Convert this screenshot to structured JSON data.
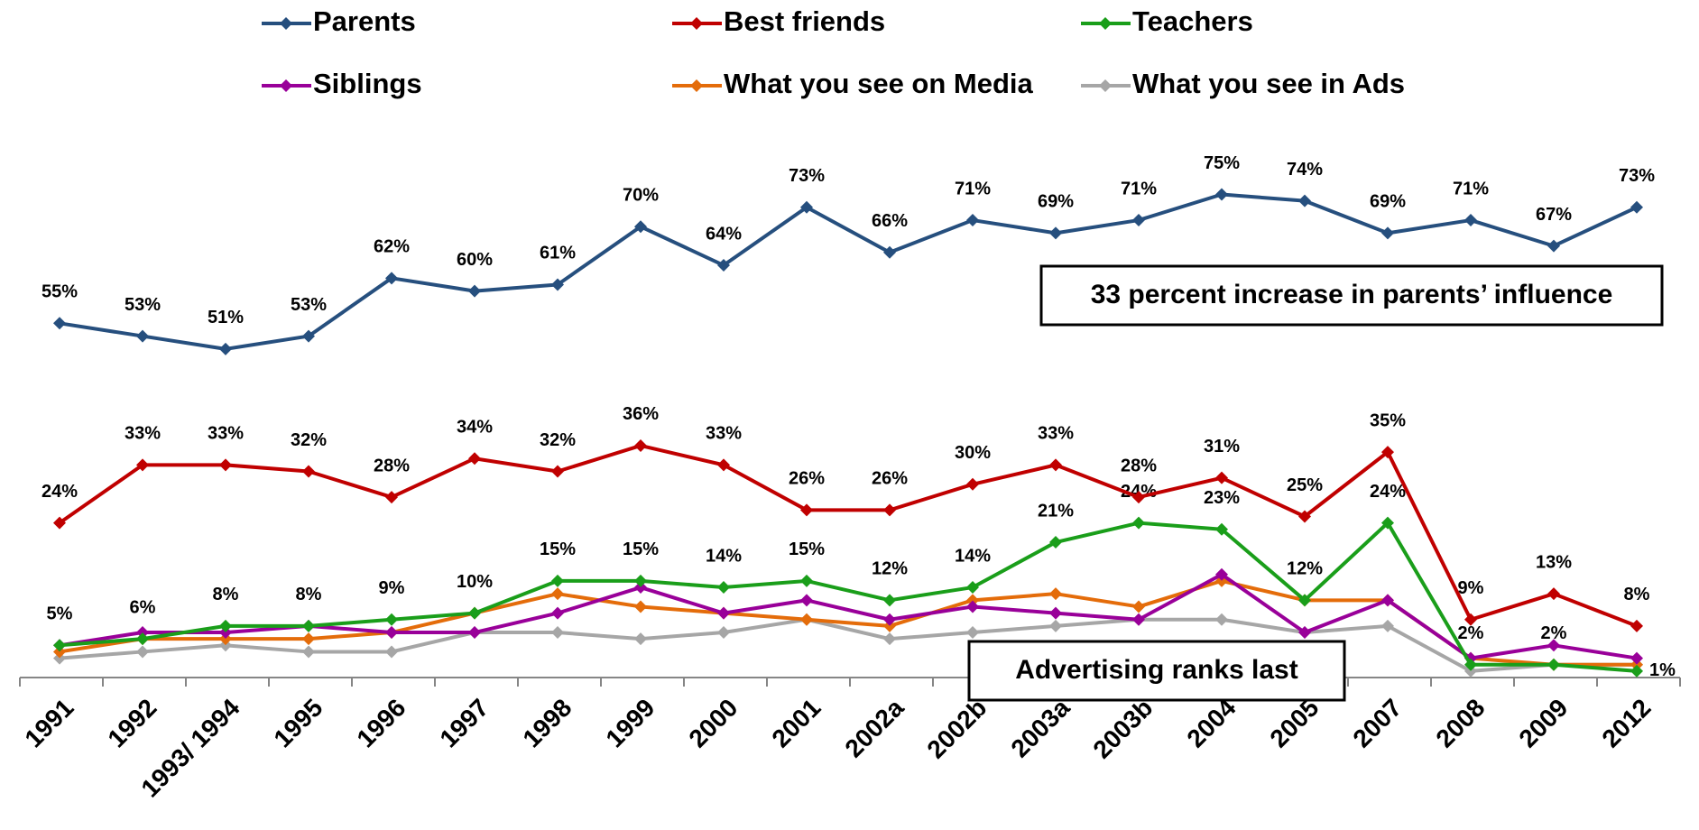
{
  "chart_data": {
    "type": "line",
    "categories": [
      "1991",
      "1992",
      "1993/ 1994",
      "1995",
      "1996",
      "1997",
      "1998",
      "1999",
      "2000",
      "2001",
      "2002a",
      "2002b",
      "2003a",
      "2003b",
      "2004",
      "2005",
      "2007",
      "2008",
      "2009",
      "2012"
    ],
    "ylim": [
      0,
      100
    ],
    "series": [
      {
        "name": "Parents",
        "color": "#264f7e",
        "values": [
          55,
          53,
          51,
          53,
          62,
          60,
          61,
          70,
          64,
          73,
          66,
          71,
          69,
          71,
          75,
          74,
          69,
          71,
          67,
          73
        ],
        "value_labels": [
          "55%",
          "53%",
          "51%",
          "53%",
          "62%",
          "60%",
          "61%",
          "70%",
          "64%",
          "73%",
          "66%",
          "71%",
          "69%",
          "71%",
          "75%",
          "74%",
          "69%",
          "71%",
          "67%",
          "73%"
        ]
      },
      {
        "name": "Best friends",
        "color": "#c00000",
        "values": [
          24,
          33,
          33,
          32,
          28,
          34,
          32,
          36,
          33,
          26,
          26,
          30,
          33,
          28,
          31,
          25,
          35,
          9,
          13,
          8
        ],
        "value_labels": [
          "24%",
          "33%",
          "33%",
          "32%",
          "28%",
          "34%",
          "32%",
          "36%",
          "33%",
          "26%",
          "26%",
          "30%",
          "33%",
          "28%",
          "31%",
          "25%",
          "35%",
          "9%",
          "13%",
          "8%"
        ]
      },
      {
        "name": "Teachers",
        "color": "#1a9e1a",
        "values": [
          5,
          6,
          8,
          8,
          9,
          10,
          15,
          15,
          14,
          15,
          12,
          14,
          21,
          24,
          23,
          12,
          24,
          2,
          2,
          1
        ],
        "value_labels": [
          "5%",
          "6%",
          "8%",
          "8%",
          "9%",
          "10%",
          "15%",
          "15%",
          "14%",
          "15%",
          "12%",
          "14%",
          "21%",
          "24%",
          "23%",
          "12%",
          "24%",
          "2%",
          "2%",
          "1%"
        ]
      },
      {
        "name": "Siblings",
        "color": "#990099",
        "values": [
          5,
          7,
          7,
          8,
          7,
          7,
          10,
          14,
          10,
          12,
          9,
          11,
          10,
          9,
          16,
          7,
          12,
          3,
          5,
          3
        ]
      },
      {
        "name": "What you see on Media",
        "color": "#e46c0a",
        "values": [
          4,
          6,
          6,
          6,
          7,
          10,
          13,
          11,
          10,
          9,
          8,
          12,
          13,
          11,
          15,
          12,
          12,
          3,
          2,
          2
        ]
      },
      {
        "name": "What you see in Ads",
        "color": "#a6a6a6",
        "values": [
          3,
          4,
          5,
          4,
          4,
          7,
          7,
          6,
          7,
          9,
          6,
          7,
          8,
          9,
          9,
          7,
          8,
          1,
          2,
          2
        ]
      }
    ],
    "annotations": [
      "33 percent increase in parents’ influence",
      "Advertising ranks last"
    ]
  }
}
